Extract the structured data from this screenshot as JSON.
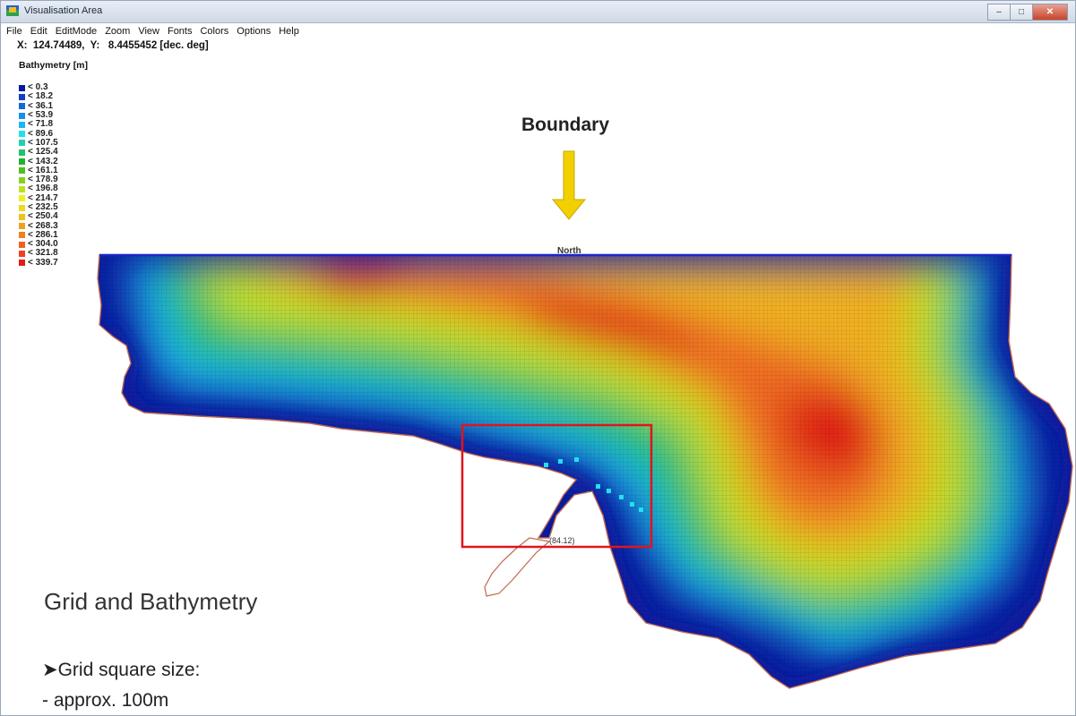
{
  "window": {
    "title": "Visualisation Area",
    "minimize_label": "–",
    "maximize_label": "□",
    "close_label": "✕"
  },
  "menu": [
    "File",
    "Edit",
    "EditMode",
    "Zoom",
    "View",
    "Fonts",
    "Colors",
    "Options",
    "Help"
  ],
  "coords": {
    "text": "X:  124.74489,  Y:   8.4455452 [dec. deg]"
  },
  "legend": {
    "title": "Bathymetry [m]",
    "items": [
      {
        "label": "< 0.3",
        "color": "#0a1aa0"
      },
      {
        "label": "< 18.2",
        "color": "#1240c0"
      },
      {
        "label": "< 36.1",
        "color": "#1468d8"
      },
      {
        "label": "< 53.9",
        "color": "#1890e8"
      },
      {
        "label": "< 71.8",
        "color": "#1cb6f2"
      },
      {
        "label": "< 89.6",
        "color": "#22e0f0"
      },
      {
        "label": "< 107.5",
        "color": "#22d0b0"
      },
      {
        "label": "< 125.4",
        "color": "#22c070"
      },
      {
        "label": "< 143.2",
        "color": "#22b030"
      },
      {
        "label": "< 161.1",
        "color": "#50c020"
      },
      {
        "label": "< 178.9",
        "color": "#88d020"
      },
      {
        "label": "< 196.8",
        "color": "#c0e020"
      },
      {
        "label": "< 214.7",
        "color": "#f0f020"
      },
      {
        "label": "< 232.5",
        "color": "#f0d820"
      },
      {
        "label": "< 250.4",
        "color": "#f0c020"
      },
      {
        "label": "< 268.3",
        "color": "#f0a020"
      },
      {
        "label": "< 286.1",
        "color": "#f08020"
      },
      {
        "label": "< 304.0",
        "color": "#f06020"
      },
      {
        "label": "< 321.8",
        "color": "#ee4020"
      },
      {
        "label": "< 339.7",
        "color": "#e01c18"
      }
    ]
  },
  "map": {
    "boundary_label": "Boundary",
    "north_label": "North",
    "marker_label": "(84.12)",
    "arrow_color": "#f2d000",
    "highlight_color": "#e0141c"
  },
  "slide": {
    "title": "Grid and Bathymetry",
    "bullet": "➤Grid square size:",
    "sub": "- approx. 100m"
  }
}
